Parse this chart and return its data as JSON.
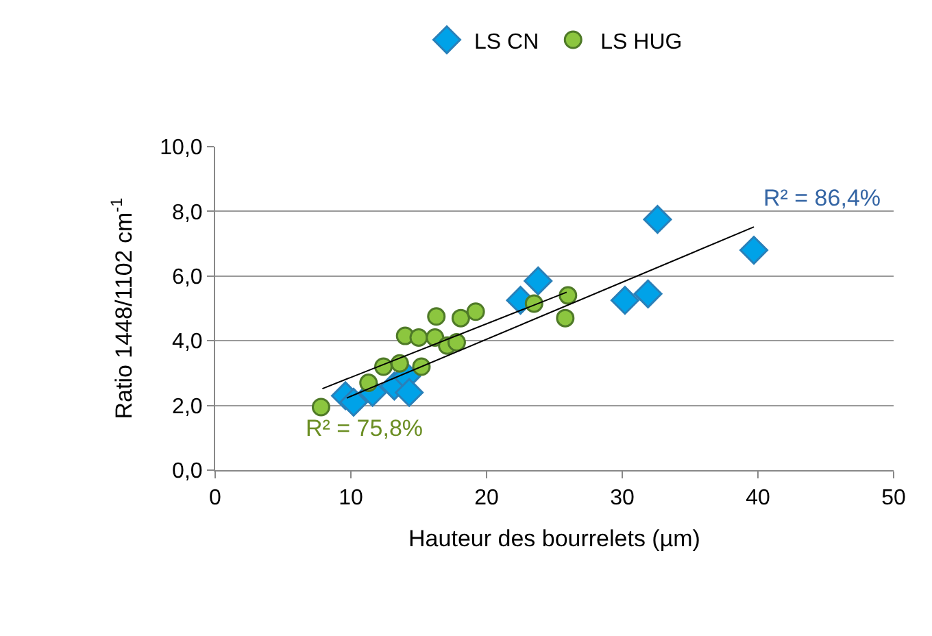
{
  "chart_data": {
    "type": "scatter",
    "xlabel": "Hauteur des bourrelets (µm)",
    "ylabel": "Ratio 1448/1102 cm$^{-1}$",
    "xlim": [
      0,
      50
    ],
    "xticks": [
      0,
      10,
      20,
      30,
      40,
      50
    ],
    "ylim": [
      0,
      10
    ],
    "yticks": [
      {
        "value": 0,
        "label": "0,0"
      },
      {
        "value": 2,
        "label": "2,0"
      },
      {
        "value": 4,
        "label": "4,0"
      },
      {
        "value": 6,
        "label": "6,0"
      },
      {
        "value": 8,
        "label": "8,0"
      },
      {
        "value": 10,
        "label": "10,0"
      }
    ],
    "grid": "y",
    "legend": "top",
    "series": [
      {
        "name": "LS CN",
        "color": "#00a2e8",
        "marker": "diamond",
        "x": [
          9.6,
          10.2,
          11.6,
          13.2,
          14.1,
          14.3,
          22.5,
          23.8,
          30.2,
          31.9,
          32.6,
          39.7
        ],
        "values": [
          2.3,
          2.1,
          2.4,
          2.6,
          2.9,
          2.4,
          5.25,
          5.85,
          5.25,
          5.45,
          7.75,
          6.8
        ]
      },
      {
        "name": "LS HUG",
        "color": "#8cc63f",
        "marker": "circle",
        "x": [
          7.8,
          11.3,
          12.4,
          13.6,
          14.0,
          15.0,
          15.2,
          16.2,
          16.3,
          17.1,
          17.8,
          18.1,
          19.2,
          23.5,
          26.0,
          25.8
        ],
        "values": [
          1.95,
          2.7,
          3.2,
          3.3,
          4.15,
          4.1,
          3.2,
          4.1,
          4.75,
          3.85,
          3.95,
          4.7,
          4.9,
          5.15,
          5.4,
          4.7
        ]
      },
      {
        "type": "line",
        "color": "#000000",
        "x": [
          9.7,
          39.7
        ],
        "values": [
          2.23,
          7.52
        ]
      },
      {
        "type": "line",
        "color": "#000000",
        "x": [
          7.9,
          25.9
        ],
        "values": [
          2.52,
          5.5
        ]
      }
    ],
    "annotations": [
      "R² = 86,4%",
      "R² = 75,8%"
    ]
  }
}
